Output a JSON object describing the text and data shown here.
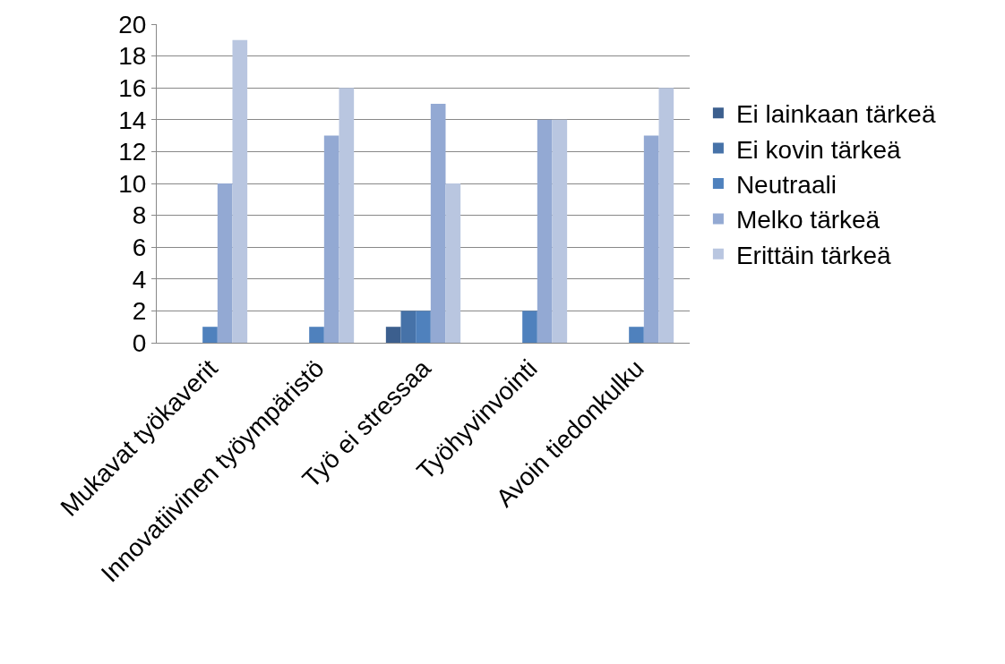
{
  "chart_data": {
    "type": "bar",
    "categories": [
      "Mukavat työkaverit",
      "Innovatiivinen työympäristö",
      "Työ ei stressaa",
      "Työhyvinvointi",
      "Avoin tiedonkulku"
    ],
    "series": [
      {
        "name": "Ei lainkaan tärkeä",
        "color": "#3c5f8e",
        "values": [
          0,
          0,
          1,
          0,
          0
        ]
      },
      {
        "name": "Ei kovin tärkeä",
        "color": "#4672a8",
        "values": [
          0,
          0,
          2,
          0,
          0
        ]
      },
      {
        "name": "Neutraali",
        "color": "#4f81bd",
        "values": [
          1,
          1,
          2,
          2,
          1
        ]
      },
      {
        "name": "Melko tärkeä",
        "color": "#93a9d3",
        "values": [
          10,
          13,
          15,
          14,
          13
        ]
      },
      {
        "name": "Erittäin tärkeä",
        "color": "#b9c6e0",
        "values": [
          19,
          16,
          10,
          14,
          16
        ]
      }
    ],
    "ylim": [
      0,
      20
    ],
    "yticks": [
      0,
      2,
      4,
      6,
      8,
      10,
      12,
      14,
      16,
      18,
      20
    ],
    "grid": "y",
    "legend": "right"
  }
}
